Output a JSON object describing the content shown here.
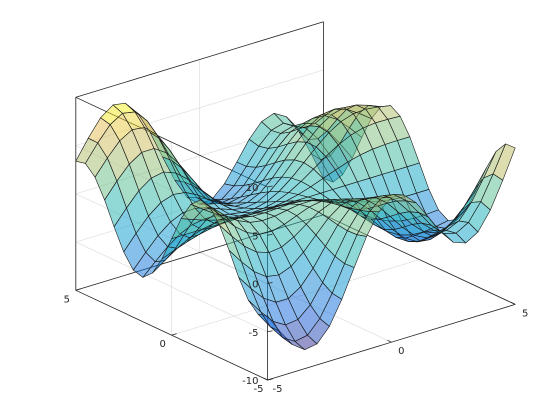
{
  "chart_data": {
    "type": "surface",
    "title": "",
    "xlabel": "",
    "ylabel": "",
    "zlabel": "",
    "xlim": [
      -5,
      5
    ],
    "ylim": [
      -5,
      5
    ],
    "zlim": [
      -10,
      10
    ],
    "x_ticks": [
      -5,
      0,
      5
    ],
    "y_ticks": [
      -5,
      0,
      5
    ],
    "z_ticks": [
      -10,
      -5,
      0,
      5,
      10
    ],
    "x_tick_labels": [
      "-5",
      "0",
      "5"
    ],
    "y_tick_labels": [
      "-5",
      "0",
      "5"
    ],
    "z_tick_labels": [
      "-10",
      "-5",
      "0",
      "5",
      "10"
    ],
    "grid": true,
    "colormap": "parula",
    "face_alpha": 0.5,
    "edge_color": "#1a1a1a",
    "mesh_points_per_side": 21,
    "z_function": "x*sin(y) - y*cos(x)"
  }
}
